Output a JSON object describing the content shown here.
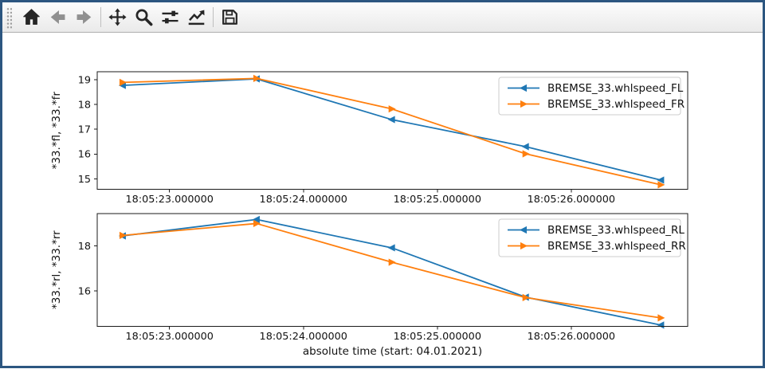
{
  "window": {
    "border_color": "#2c5680",
    "toolbar_separator_color": "#bfbfbf",
    "toolbar_icon_color": "#262626",
    "toolbar_icon_disabled_color": "#909090"
  },
  "toolbar": {
    "buttons": [
      {
        "name": "home",
        "icon": "home-icon",
        "enabled": true
      },
      {
        "name": "back",
        "icon": "back-arrow-icon",
        "enabled": false
      },
      {
        "name": "forward",
        "icon": "forward-arrow-icon",
        "enabled": false
      },
      {
        "type": "separator"
      },
      {
        "name": "pan",
        "icon": "pan-arrows-icon",
        "enabled": true
      },
      {
        "name": "zoom",
        "icon": "magnifier-icon",
        "enabled": true
      },
      {
        "name": "configure-subplots",
        "icon": "sliders-icon",
        "enabled": true
      },
      {
        "name": "edit-parameters",
        "icon": "chart-line-icon",
        "enabled": true
      },
      {
        "type": "separator"
      },
      {
        "name": "save",
        "icon": "floppy-disk-icon",
        "enabled": true
      }
    ]
  },
  "figure": {
    "xlabel": "absolute time (start: 04.01.2021)"
  },
  "chart_data": [
    {
      "type": "line",
      "ylabel": "*33.*fl, *33.*fr",
      "x_unit": "seconds after 18:05:00",
      "x": [
        22.65,
        23.65,
        24.66,
        25.66,
        26.67
      ],
      "series": [
        {
          "name": "BREMSE_33.whlspeed_FL",
          "color": "#1f77b4",
          "marker": "triangle-left",
          "values": [
            18.77,
            19.03,
            17.39,
            16.3,
            14.95
          ]
        },
        {
          "name": "BREMSE_33.whlspeed_FR",
          "color": "#ff7f0e",
          "marker": "triangle-right",
          "values": [
            18.89,
            19.05,
            17.82,
            16.01,
            14.76
          ]
        }
      ],
      "xlim": [
        22.46,
        26.87
      ],
      "ylim": [
        14.58,
        19.32
      ],
      "xticks": [
        23,
        24,
        25,
        26
      ],
      "xtick_labels": [
        "18:05:23.000000",
        "18:05:24.000000",
        "18:05:25.000000",
        "18:05:26.000000"
      ],
      "yticks": [
        15,
        16,
        17,
        18,
        19
      ],
      "grid": false,
      "legend_position": "upper right"
    },
    {
      "type": "line",
      "ylabel": "*33.*rl, *33.*rr",
      "x_unit": "seconds after 18:05:00",
      "x": [
        22.65,
        23.65,
        24.66,
        25.66,
        26.67
      ],
      "series": [
        {
          "name": "BREMSE_33.whlspeed_RL",
          "color": "#1f77b4",
          "marker": "triangle-left",
          "values": [
            18.45,
            19.18,
            17.92,
            15.73,
            14.49
          ]
        },
        {
          "name": "BREMSE_33.whlspeed_RR",
          "color": "#ff7f0e",
          "marker": "triangle-right",
          "values": [
            18.47,
            19.0,
            17.28,
            15.71,
            14.81
          ]
        }
      ],
      "xlim": [
        22.46,
        26.87
      ],
      "ylim": [
        14.44,
        19.44
      ],
      "xticks": [
        23,
        24,
        25,
        26
      ],
      "xtick_labels": [
        "18:05:23.000000",
        "18:05:24.000000",
        "18:05:25.000000",
        "18:05:26.000000"
      ],
      "yticks": [
        16,
        18
      ],
      "grid": false,
      "legend_position": "upper right"
    }
  ]
}
